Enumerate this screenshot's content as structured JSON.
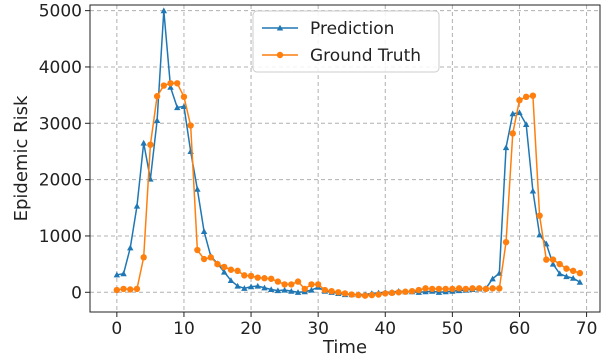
{
  "chart_data": {
    "type": "line",
    "title": "",
    "xlabel": "Time",
    "ylabel": "Epidemic Risk",
    "xlim": [
      -4,
      72
    ],
    "ylim": [
      -350,
      5100
    ],
    "xticks": [
      0,
      10,
      20,
      30,
      40,
      50,
      60,
      70
    ],
    "yticks": [
      0,
      1000,
      2000,
      3000,
      4000,
      5000
    ],
    "grid": true,
    "legend_position": "top-center",
    "x": [
      0,
      1,
      2,
      3,
      4,
      5,
      6,
      7,
      8,
      9,
      10,
      11,
      12,
      13,
      14,
      15,
      16,
      17,
      18,
      19,
      20,
      21,
      22,
      23,
      24,
      25,
      26,
      27,
      28,
      29,
      30,
      31,
      32,
      33,
      34,
      35,
      36,
      37,
      38,
      39,
      40,
      41,
      42,
      43,
      44,
      45,
      46,
      47,
      48,
      49,
      50,
      51,
      52,
      53,
      54,
      55,
      56,
      57,
      58,
      59,
      60,
      61,
      62,
      63,
      64,
      65,
      66,
      67,
      68,
      69
    ],
    "series": [
      {
        "name": "Prediction",
        "color": "#1f77b4",
        "marker": "triangle",
        "values": [
          310,
          330,
          790,
          1530,
          2650,
          2010,
          3050,
          5000,
          3640,
          3280,
          3300,
          2500,
          1830,
          1080,
          640,
          510,
          360,
          210,
          110,
          70,
          100,
          110,
          80,
          50,
          30,
          40,
          20,
          0,
          10,
          40,
          90,
          20,
          0,
          -20,
          -40,
          -40,
          -40,
          -40,
          -20,
          -10,
          0,
          0,
          20,
          10,
          10,
          0,
          10,
          20,
          0,
          10,
          20,
          30,
          40,
          50,
          60,
          70,
          240,
          340,
          2570,
          3170,
          3190,
          2980,
          1800,
          1020,
          860,
          500,
          330,
          280,
          250,
          180
        ]
      },
      {
        "name": "Ground Truth",
        "color": "#ff7f0e",
        "marker": "circle",
        "values": [
          40,
          60,
          50,
          60,
          620,
          2620,
          3480,
          3670,
          3710,
          3710,
          3470,
          2960,
          750,
          590,
          620,
          500,
          450,
          400,
          380,
          300,
          290,
          260,
          250,
          240,
          190,
          140,
          140,
          190,
          60,
          140,
          140,
          40,
          20,
          0,
          -20,
          -40,
          -50,
          -60,
          -50,
          -40,
          -20,
          -10,
          0,
          10,
          20,
          40,
          70,
          60,
          60,
          60,
          60,
          70,
          60,
          70,
          70,
          60,
          70,
          70,
          890,
          2820,
          3410,
          3470,
          3490,
          1360,
          580,
          580,
          500,
          420,
          380,
          340
        ]
      }
    ]
  }
}
